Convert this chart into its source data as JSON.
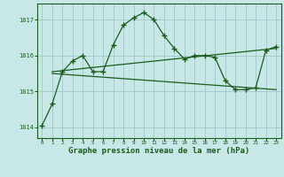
{
  "background_color": "#c8e8e8",
  "grid_color": "#a0c8c8",
  "line_color": "#1a5c1a",
  "marker_color": "#1a5c1a",
  "title": "Graphe pression niveau de la mer (hPa)",
  "title_fontsize": 6.5,
  "xlim": [
    -0.5,
    23.5
  ],
  "ylim": [
    1013.7,
    1017.45
  ],
  "yticks": [
    1014,
    1015,
    1016,
    1017
  ],
  "xticks": [
    0,
    1,
    2,
    3,
    4,
    5,
    6,
    7,
    8,
    9,
    10,
    11,
    12,
    13,
    14,
    15,
    16,
    17,
    18,
    19,
    20,
    21,
    22,
    23
  ],
  "series1_x": [
    0,
    1,
    2,
    3,
    4,
    5,
    6,
    7,
    8,
    9,
    10,
    11,
    12,
    13,
    14,
    15,
    16,
    17,
    18,
    19,
    20,
    21,
    22,
    23
  ],
  "series1_y": [
    1014.05,
    1014.65,
    1015.55,
    1015.85,
    1016.0,
    1015.55,
    1015.55,
    1016.3,
    1016.85,
    1017.05,
    1017.2,
    1017.0,
    1016.55,
    1016.2,
    1015.9,
    1016.0,
    1016.0,
    1015.95,
    1015.3,
    1015.05,
    1015.05,
    1015.1,
    1016.15,
    1016.25
  ],
  "series2_x": [
    1,
    23
  ],
  "series2_y": [
    1015.55,
    1016.2
  ],
  "series3_x": [
    1,
    23
  ],
  "series3_y": [
    1015.5,
    1015.05
  ]
}
